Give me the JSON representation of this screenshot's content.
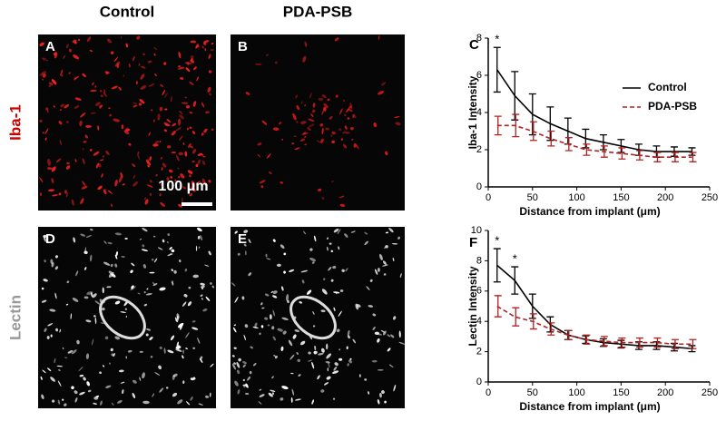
{
  "figure": {
    "columns": [
      "Control",
      "PDA-PSB"
    ],
    "rows": [
      "Iba-1",
      "Lectin"
    ],
    "panels": [
      "A",
      "B",
      "D",
      "E"
    ],
    "scale_bar": "100 μm"
  },
  "chart_data": [
    {
      "type": "line",
      "panel": "C",
      "xlabel": "Distance from implant (μm)",
      "ylabel": "Iba-1 Intensity",
      "x": [
        10,
        30,
        50,
        70,
        90,
        110,
        130,
        150,
        170,
        190,
        210,
        230
      ],
      "xlim": [
        0,
        250
      ],
      "xticks": [
        0,
        50,
        100,
        150,
        200,
        250
      ],
      "ylim": [
        0,
        8
      ],
      "yticks": [
        0,
        2,
        4,
        6,
        8
      ],
      "legend": "upper right",
      "annotations": [
        {
          "text": "*",
          "x": 10
        }
      ],
      "series": [
        {
          "name": "Control",
          "color": "#000000",
          "linestyle": "solid",
          "values": [
            6.3,
            4.9,
            3.9,
            3.4,
            3.0,
            2.6,
            2.4,
            2.2,
            2.0,
            1.9,
            1.9,
            1.9
          ],
          "errors": [
            1.2,
            1.3,
            1.1,
            0.9,
            0.7,
            0.5,
            0.4,
            0.35,
            0.3,
            0.3,
            0.25,
            0.2
          ]
        },
        {
          "name": "PDA-PSB",
          "color": "#b22222",
          "linestyle": "dashed",
          "values": [
            3.3,
            3.3,
            3.0,
            2.6,
            2.3,
            2.0,
            1.9,
            1.8,
            1.7,
            1.6,
            1.6,
            1.6
          ],
          "errors": [
            0.5,
            0.6,
            0.5,
            0.4,
            0.35,
            0.3,
            0.3,
            0.3,
            0.25,
            0.25,
            0.25,
            0.25
          ]
        }
      ]
    },
    {
      "type": "line",
      "panel": "F",
      "xlabel": "Distance from implant (μm)",
      "ylabel": "Lectin Intensity",
      "x": [
        10,
        30,
        50,
        70,
        90,
        110,
        130,
        150,
        170,
        190,
        210,
        230
      ],
      "xlim": [
        0,
        250
      ],
      "xticks": [
        0,
        50,
        100,
        150,
        200,
        250
      ],
      "ylim": [
        0,
        10
      ],
      "yticks": [
        0,
        2,
        4,
        6,
        8,
        10
      ],
      "annotations": [
        {
          "text": "*",
          "x": 10
        },
        {
          "text": "*",
          "x": 30
        }
      ],
      "series": [
        {
          "color": "#000000",
          "linestyle": "solid",
          "values": [
            7.7,
            6.7,
            5.0,
            3.8,
            3.1,
            2.8,
            2.6,
            2.5,
            2.4,
            2.4,
            2.3,
            2.2
          ],
          "errors": [
            1.1,
            0.9,
            0.8,
            0.5,
            0.3,
            0.25,
            0.25,
            0.25,
            0.25,
            0.25,
            0.25,
            0.2
          ]
        },
        {
          "color": "#b22222",
          "linestyle": "dashed",
          "values": [
            5.0,
            4.3,
            4.0,
            3.5,
            3.1,
            2.8,
            2.7,
            2.6,
            2.6,
            2.6,
            2.5,
            2.5
          ],
          "errors": [
            0.7,
            0.6,
            0.5,
            0.4,
            0.3,
            0.3,
            0.3,
            0.3,
            0.3,
            0.3,
            0.3,
            0.3
          ]
        }
      ]
    }
  ]
}
